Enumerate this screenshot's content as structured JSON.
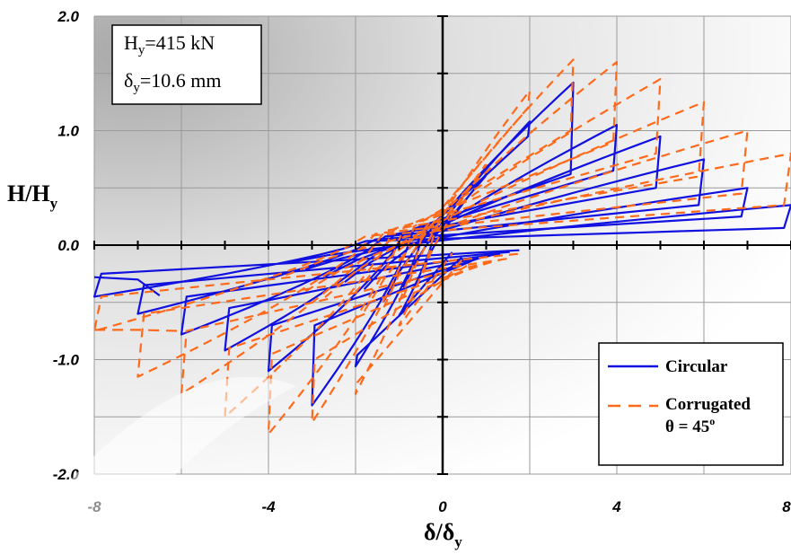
{
  "chart_data": {
    "type": "line",
    "xlabel": {
      "main": "δ/δ",
      "sub": "y"
    },
    "ylabel": {
      "main": "H/H",
      "sub": "y"
    },
    "xlim": [
      -8,
      8
    ],
    "ylim": [
      -2,
      2
    ],
    "x_ticks": [
      -8,
      -4,
      0,
      4,
      8
    ],
    "x_tick_labels": [
      "-8",
      "-4",
      "0",
      "4",
      "8"
    ],
    "y_ticks": [
      -2,
      -1,
      0,
      1,
      2
    ],
    "y_tick_labels": [
      "-2.0",
      "-1.0",
      "0.0",
      "1.0",
      "2.0"
    ],
    "grid": true,
    "legend_position": "bottom-right",
    "annotation": {
      "line1": {
        "main": "H",
        "sub": "y",
        "rest": "=415 kN"
      },
      "line2": {
        "main": "δ",
        "sub": "y",
        "rest": "=10.6 mm"
      }
    },
    "series": [
      {
        "name": "Circular",
        "color": "#1010e0",
        "style": "solid",
        "loops": [
          {
            "amp": 1,
            "top": 0.62,
            "bot": -0.62,
            "yx": 0.6,
            "yn": -0.6
          },
          {
            "amp": 2,
            "top": 1.08,
            "bot": -1.06,
            "yx": 0.95,
            "yn": -0.96
          },
          {
            "amp": 3,
            "top": 1.42,
            "bot": -1.4,
            "yx": 0.62,
            "yn": -0.7
          },
          {
            "amp": 4,
            "top": 1.05,
            "bot": -1.1,
            "yx": 0.65,
            "yn": -0.7
          },
          {
            "amp": 5,
            "top": 0.95,
            "bot": -0.92,
            "yx": 0.5,
            "yn": -0.55
          },
          {
            "amp": 6,
            "top": 0.75,
            "bot": -0.78,
            "yx": 0.35,
            "yn": -0.45
          },
          {
            "amp": 7,
            "top": 0.5,
            "bot": -0.6,
            "yx": 0.25,
            "yn": -0.35
          },
          {
            "amp": 8,
            "top": 0.35,
            "bot": -0.45,
            "yx": 0.15,
            "yn": -0.25
          }
        ],
        "tail": {
          "x": [
            -8,
            -7,
            -6.5
          ],
          "y": [
            -0.28,
            -0.3,
            -0.44
          ]
        }
      },
      {
        "name": "Corrugated",
        "name2": "θ = 45",
        "name2_sup": "o",
        "color": "#ff6a1a",
        "style": "dashed",
        "loops": [
          {
            "amp": 1,
            "top": 0.7,
            "bot": -0.7,
            "yx": 0.7,
            "yn": -0.7
          },
          {
            "amp": 2,
            "top": 1.35,
            "bot": -1.3,
            "yx": 1.2,
            "yn": -1.2
          },
          {
            "amp": 3,
            "top": 1.62,
            "bot": -1.55,
            "yx": 1.0,
            "yn": -1.0
          },
          {
            "amp": 4,
            "top": 1.6,
            "bot": -1.65,
            "yx": 0.9,
            "yn": -0.95
          },
          {
            "amp": 5,
            "top": 1.45,
            "bot": -1.5,
            "yx": 0.8,
            "yn": -0.9
          },
          {
            "amp": 6,
            "top": 1.25,
            "bot": -1.3,
            "yx": 0.6,
            "yn": -0.75
          },
          {
            "amp": 7,
            "top": 1.0,
            "bot": -1.15,
            "yx": 0.45,
            "yn": -0.6
          },
          {
            "amp": 8,
            "top": 0.8,
            "bot": -0.75,
            "yx": 0.35,
            "yn": -0.45
          }
        ],
        "tail": {
          "x": [
            -8,
            -7,
            -6
          ],
          "y": [
            -0.74,
            -0.74,
            -0.75
          ]
        }
      }
    ]
  }
}
